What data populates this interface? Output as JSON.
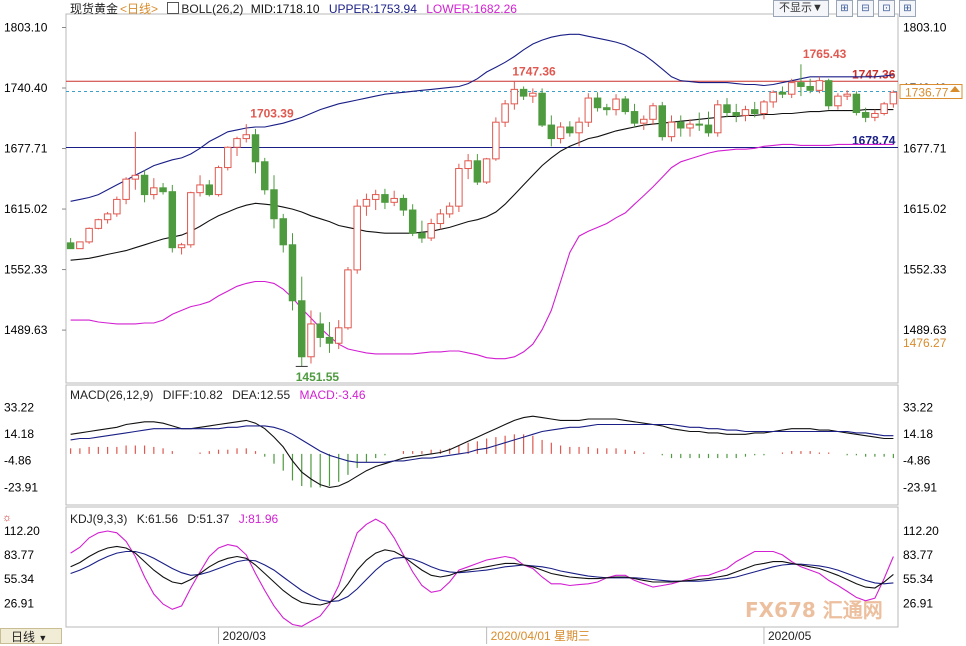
{
  "header": {
    "instrument": "现货黄金",
    "period": "<日线>",
    "boll": {
      "label": "BOLL(26,2)",
      "mid": "MID:1718.10",
      "upper": "UPPER:1753.94",
      "lower": "LOWER:1682.26"
    },
    "hide_button": "不显示▼"
  },
  "macd_header": {
    "label": "MACD(26,12,9)",
    "diff": "DIFF:10.82",
    "dea": "DEA:12.55",
    "macd": "MACD:-3.46"
  },
  "kdj_header": {
    "label": "KDJ(9,3,3)",
    "k": "K:61.56",
    "d": "D:51.37",
    "j": "J:81.96"
  },
  "period_button": "日线",
  "date_labels": [
    "2020/03",
    "2020/04/01 星期三",
    "2020/05"
  ],
  "price_ticks": [
    "1803.10",
    "1740.40",
    "1677.71",
    "1615.02",
    "1552.33",
    "1489.63"
  ],
  "macd_ticks": [
    "33.22",
    "14.18",
    "-4.86",
    "-23.91"
  ],
  "kdj_ticks": [
    "112.20",
    "83.77",
    "55.34",
    "26.91"
  ],
  "right_labels": {
    "last_price": "1736.77",
    "low_tag": "1476.27"
  },
  "annotations": {
    "high1": "1703.39",
    "low1": "1451.55",
    "high2": "1747.36",
    "high3": "1765.43"
  },
  "lines": {
    "red": "1747.36",
    "blue": "1678.74"
  },
  "watermark": "FX678 汇通网",
  "colors": {
    "up": "#e0584f",
    "down": "#4e9a3f",
    "boll_mid": "#111111",
    "boll_band": "#1a1f86",
    "boll_lower": "#d21fd2",
    "red_line": "#c9302c",
    "blue_line": "#1a1f86"
  },
  "chart_data": {
    "type": "candlestick",
    "y_range": [
      1440,
      1815
    ],
    "candles": [
      [
        1580,
        1585,
        1574,
        1574
      ],
      [
        1574,
        1580,
        1574,
        1581
      ],
      [
        1581,
        1596,
        1579,
        1595
      ],
      [
        1595,
        1605,
        1594,
        1604
      ],
      [
        1604,
        1612,
        1600,
        1610
      ],
      [
        1610,
        1628,
        1607,
        1625
      ],
      [
        1625,
        1648,
        1620,
        1646
      ],
      [
        1646,
        1695,
        1635,
        1650
      ],
      [
        1650,
        1655,
        1622,
        1630
      ],
      [
        1630,
        1647,
        1625,
        1637
      ],
      [
        1637,
        1642,
        1630,
        1633
      ],
      [
        1633,
        1640,
        1570,
        1575
      ],
      [
        1575,
        1580,
        1568,
        1578
      ],
      [
        1578,
        1633,
        1575,
        1632
      ],
      [
        1632,
        1650,
        1628,
        1640
      ],
      [
        1640,
        1645,
        1628,
        1630
      ],
      [
        1630,
        1660,
        1628,
        1658
      ],
      [
        1658,
        1680,
        1655,
        1679
      ],
      [
        1679,
        1690,
        1670,
        1688
      ],
      [
        1688,
        1703,
        1684,
        1692
      ],
      [
        1692,
        1698,
        1652,
        1664
      ],
      [
        1664,
        1668,
        1630,
        1635
      ],
      [
        1635,
        1650,
        1595,
        1605
      ],
      [
        1605,
        1610,
        1570,
        1578
      ],
      [
        1578,
        1590,
        1510,
        1520
      ],
      [
        1520,
        1545,
        1452,
        1462
      ],
      [
        1462,
        1510,
        1455,
        1496
      ],
      [
        1496,
        1508,
        1472,
        1482
      ],
      [
        1482,
        1498,
        1466,
        1476
      ],
      [
        1476,
        1500,
        1470,
        1492
      ],
      [
        1492,
        1555,
        1490,
        1552
      ],
      [
        1552,
        1625,
        1548,
        1618
      ],
      [
        1618,
        1631,
        1608,
        1625
      ],
      [
        1625,
        1635,
        1614,
        1630
      ],
      [
        1630,
        1636,
        1615,
        1622
      ],
      [
        1622,
        1634,
        1618,
        1626
      ],
      [
        1626,
        1630,
        1608,
        1614
      ],
      [
        1614,
        1620,
        1587,
        1590
      ],
      [
        1590,
        1603,
        1580,
        1585
      ],
      [
        1585,
        1605,
        1582,
        1600
      ],
      [
        1600,
        1615,
        1594,
        1610
      ],
      [
        1610,
        1622,
        1606,
        1618
      ],
      [
        1618,
        1662,
        1612,
        1657
      ],
      [
        1657,
        1672,
        1646,
        1665
      ],
      [
        1665,
        1672,
        1640,
        1643
      ],
      [
        1643,
        1668,
        1641,
        1667
      ],
      [
        1667,
        1710,
        1665,
        1705
      ],
      [
        1705,
        1728,
        1700,
        1724
      ],
      [
        1724,
        1747,
        1718,
        1739
      ],
      [
        1739,
        1742,
        1728,
        1732
      ],
      [
        1732,
        1740,
        1725,
        1735
      ],
      [
        1735,
        1740,
        1700,
        1702
      ],
      [
        1702,
        1712,
        1680,
        1688
      ],
      [
        1688,
        1705,
        1683,
        1700
      ],
      [
        1700,
        1706,
        1690,
        1694
      ],
      [
        1694,
        1710,
        1680,
        1705
      ],
      [
        1705,
        1735,
        1700,
        1730
      ],
      [
        1730,
        1736,
        1716,
        1720
      ],
      [
        1720,
        1724,
        1712,
        1718
      ],
      [
        1718,
        1734,
        1712,
        1729
      ],
      [
        1729,
        1732,
        1713,
        1716
      ],
      [
        1716,
        1724,
        1700,
        1704
      ],
      [
        1704,
        1712,
        1697,
        1708
      ],
      [
        1708,
        1725,
        1702,
        1722
      ],
      [
        1722,
        1726,
        1686,
        1690
      ],
      [
        1690,
        1712,
        1685,
        1705
      ],
      [
        1705,
        1712,
        1690,
        1699
      ],
      [
        1699,
        1708,
        1690,
        1703
      ],
      [
        1703,
        1715,
        1696,
        1702
      ],
      [
        1702,
        1716,
        1690,
        1694
      ],
      [
        1694,
        1728,
        1690,
        1723
      ],
      [
        1723,
        1730,
        1710,
        1715
      ],
      [
        1715,
        1724,
        1705,
        1712
      ],
      [
        1712,
        1722,
        1706,
        1718
      ],
      [
        1718,
        1726,
        1710,
        1714
      ],
      [
        1714,
        1728,
        1708,
        1726
      ],
      [
        1726,
        1738,
        1720,
        1736
      ],
      [
        1736,
        1742,
        1730,
        1734
      ],
      [
        1734,
        1750,
        1730,
        1746
      ],
      [
        1746,
        1765,
        1732,
        1742
      ],
      [
        1742,
        1750,
        1735,
        1738
      ],
      [
        1738,
        1752,
        1735,
        1748
      ],
      [
        1748,
        1750,
        1718,
        1722
      ],
      [
        1722,
        1735,
        1718,
        1732
      ],
      [
        1732,
        1738,
        1728,
        1734
      ],
      [
        1734,
        1737,
        1712,
        1715
      ],
      [
        1715,
        1720,
        1705,
        1710
      ],
      [
        1710,
        1718,
        1706,
        1714
      ],
      [
        1714,
        1726,
        1712,
        1724
      ],
      [
        1724,
        1738,
        1720,
        1736
      ]
    ],
    "boll_mid": [
      1562,
      1563,
      1564,
      1566,
      1568,
      1570,
      1572,
      1575,
      1578,
      1581,
      1584,
      1586,
      1588,
      1592,
      1597,
      1603,
      1608,
      1612,
      1616,
      1619,
      1621,
      1620,
      1619,
      1617,
      1615,
      1612,
      1608,
      1605,
      1602,
      1598,
      1596,
      1594,
      1592,
      1591,
      1590,
      1590,
      1590,
      1590,
      1591,
      1592,
      1594,
      1596,
      1599,
      1602,
      1604,
      1607,
      1612,
      1620,
      1630,
      1640,
      1650,
      1660,
      1668,
      1675,
      1680,
      1684,
      1688,
      1690,
      1693,
      1696,
      1698,
      1700,
      1702,
      1703,
      1704,
      1705,
      1706,
      1707,
      1708,
      1709,
      1710,
      1711,
      1711,
      1712,
      1712,
      1713,
      1713,
      1714,
      1714,
      1715,
      1716,
      1716,
      1717,
      1717,
      1717,
      1717,
      1718,
      1718,
      1718,
      1718
    ],
    "boll_upper": [
      1623,
      1625,
      1627,
      1630,
      1635,
      1640,
      1645,
      1650,
      1655,
      1660,
      1663,
      1666,
      1668,
      1672,
      1678,
      1685,
      1690,
      1695,
      1697,
      1699,
      1700,
      1700,
      1702,
      1704,
      1707,
      1710,
      1714,
      1718,
      1721,
      1724,
      1726,
      1728,
      1730,
      1732,
      1734,
      1735,
      1736,
      1737,
      1738,
      1739,
      1740,
      1741,
      1742,
      1745,
      1750,
      1757,
      1762,
      1767,
      1773,
      1780,
      1786,
      1790,
      1793,
      1795,
      1796,
      1796,
      1794,
      1792,
      1790,
      1788,
      1785,
      1780,
      1775,
      1768,
      1760,
      1752,
      1748,
      1747,
      1746,
      1746,
      1746,
      1746,
      1745,
      1744,
      1744,
      1743,
      1744,
      1746,
      1748,
      1750,
      1752,
      1752,
      1752,
      1752,
      1752,
      1752,
      1752,
      1752,
      1753,
      1754
    ],
    "boll_lower": [
      1500,
      1500,
      1500,
      1498,
      1497,
      1496,
      1496,
      1496,
      1497,
      1497,
      1500,
      1506,
      1510,
      1514,
      1516,
      1519,
      1525,
      1530,
      1535,
      1538,
      1540,
      1540,
      1538,
      1532,
      1523,
      1512,
      1502,
      1492,
      1483,
      1475,
      1470,
      1468,
      1466,
      1465,
      1465,
      1465,
      1465,
      1465,
      1466,
      1467,
      1467,
      1468,
      1468,
      1466,
      1464,
      1461,
      1460,
      1460,
      1462,
      1467,
      1475,
      1490,
      1510,
      1540,
      1570,
      1587,
      1592,
      1596,
      1600,
      1606,
      1611,
      1620,
      1629,
      1638,
      1648,
      1658,
      1664,
      1667,
      1670,
      1673,
      1675,
      1676,
      1677,
      1677,
      1678,
      1680,
      1681,
      1682,
      1682,
      1681,
      1681,
      1681,
      1681,
      1682,
      1682,
      1682,
      1682,
      1682,
      1682,
      1682
    ],
    "macd_diff": [
      14,
      15,
      16,
      17,
      18,
      19,
      21,
      22,
      23,
      23,
      22,
      20,
      18,
      18,
      19,
      20,
      21,
      22,
      23,
      24,
      22,
      18,
      12,
      5,
      -5,
      -13,
      -18,
      -22,
      -24,
      -23,
      -20,
      -16,
      -12,
      -9,
      -7,
      -5,
      -3,
      -2,
      -1,
      0,
      1,
      3,
      6,
      9,
      12,
      15,
      18,
      21,
      24,
      26,
      27,
      26,
      25,
      24,
      24,
      24,
      25,
      25,
      25,
      25,
      24,
      23,
      22,
      21,
      20,
      18,
      17,
      16,
      16,
      15,
      15,
      14,
      14,
      14,
      15,
      15,
      16,
      17,
      18,
      18,
      18,
      17,
      17,
      16,
      15,
      14,
      13,
      12,
      11,
      11
    ],
    "macd_dea": [
      10,
      11,
      11,
      12,
      13,
      14,
      15,
      16,
      17,
      18,
      18,
      18,
      18,
      18,
      18,
      18,
      18,
      19,
      19,
      20,
      20,
      20,
      19,
      17,
      14,
      10,
      6,
      2,
      -1,
      -3,
      -5,
      -6,
      -6,
      -6,
      -6,
      -5,
      -5,
      -4,
      -3,
      -3,
      -2,
      -1,
      0,
      1,
      3,
      4,
      6,
      8,
      10,
      12,
      14,
      16,
      17,
      18,
      19,
      19,
      20,
      21,
      21,
      21,
      21,
      21,
      21,
      21,
      21,
      21,
      20,
      19,
      19,
      18,
      18,
      17,
      17,
      16,
      16,
      16,
      16,
      16,
      16,
      16,
      16,
      16,
      16,
      16,
      16,
      15,
      15,
      14,
      13,
      13
    ],
    "macd_hist": [
      4,
      4,
      5,
      5,
      5,
      5,
      6,
      6,
      6,
      5,
      4,
      2,
      0,
      0,
      1,
      2,
      3,
      3,
      4,
      4,
      2,
      -2,
      -7,
      -12,
      -19,
      -23,
      -24,
      -24,
      -23,
      -20,
      -15,
      -10,
      -6,
      -3,
      -1,
      0,
      2,
      2,
      2,
      3,
      3,
      4,
      6,
      8,
      9,
      11,
      12,
      13,
      14,
      14,
      13,
      10,
      8,
      6,
      5,
      5,
      5,
      4,
      4,
      4,
      3,
      2,
      1,
      0,
      -1,
      -3,
      -3,
      -3,
      -3,
      -3,
      -3,
      -3,
      -3,
      -2,
      -1,
      -1,
      0,
      1,
      2,
      2,
      2,
      1,
      1,
      0,
      -1,
      -1,
      -2,
      -2,
      -2,
      -3
    ],
    "kdj_k": [
      70,
      75,
      82,
      88,
      92,
      94,
      92,
      86,
      76,
      66,
      58,
      52,
      50,
      55,
      62,
      70,
      76,
      80,
      82,
      80,
      72,
      62,
      52,
      42,
      34,
      28,
      26,
      25,
      28,
      36,
      50,
      66,
      78,
      86,
      90,
      88,
      82,
      74,
      66,
      60,
      58,
      60,
      64,
      66,
      68,
      70,
      72,
      74,
      74,
      72,
      70,
      66,
      62,
      60,
      58,
      57,
      56,
      56,
      57,
      58,
      58,
      56,
      54,
      52,
      52,
      52,
      53,
      54,
      55,
      56,
      58,
      60,
      64,
      68,
      72,
      74,
      76,
      76,
      74,
      72,
      70,
      68,
      64,
      60,
      55,
      50,
      46,
      45,
      52,
      61
    ],
    "kdj_d": [
      62,
      66,
      71,
      77,
      82,
      86,
      88,
      88,
      85,
      80,
      74,
      68,
      63,
      60,
      61,
      64,
      68,
      72,
      76,
      78,
      77,
      72,
      66,
      58,
      50,
      42,
      36,
      31,
      29,
      30,
      35,
      44,
      55,
      66,
      75,
      80,
      81,
      79,
      75,
      70,
      66,
      64,
      63,
      64,
      65,
      66,
      68,
      70,
      71,
      72,
      71,
      70,
      68,
      65,
      63,
      61,
      59,
      58,
      57,
      57,
      57,
      57,
      56,
      55,
      54,
      53,
      53,
      53,
      53,
      54,
      55,
      56,
      58,
      61,
      64,
      67,
      70,
      72,
      73,
      73,
      72,
      71,
      69,
      66,
      62,
      58,
      54,
      51,
      50,
      51
    ],
    "kdj_j": [
      86,
      93,
      104,
      110,
      112,
      110,
      100,
      82,
      58,
      38,
      26,
      20,
      24,
      45,
      64,
      82,
      92,
      96,
      94,
      84,
      62,
      42,
      24,
      10,
      2,
      0,
      6,
      12,
      26,
      48,
      80,
      110,
      120,
      126,
      120,
      104,
      84,
      64,
      48,
      40,
      42,
      52,
      66,
      70,
      74,
      78,
      80,
      82,
      80,
      72,
      68,
      58,
      50,
      50,
      48,
      49,
      50,
      52,
      57,
      60,
      60,
      54,
      50,
      46,
      48,
      50,
      53,
      56,
      59,
      60,
      64,
      68,
      76,
      82,
      88,
      88,
      88,
      84,
      76,
      70,
      66,
      62,
      54,
      48,
      41,
      34,
      30,
      33,
      56,
      82
    ]
  }
}
